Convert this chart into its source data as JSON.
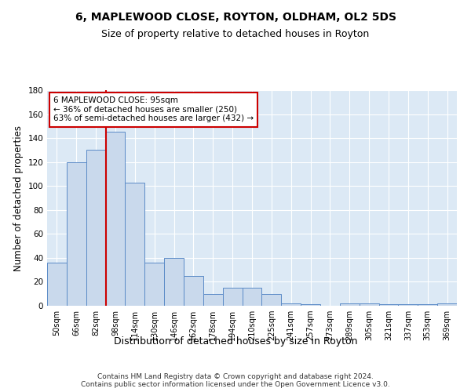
{
  "title": "6, MAPLEWOOD CLOSE, ROYTON, OLDHAM, OL2 5DS",
  "subtitle": "Size of property relative to detached houses in Royton",
  "xlabel": "Distribution of detached houses by size in Royton",
  "ylabel": "Number of detached properties",
  "categories": [
    "50sqm",
    "66sqm",
    "82sqm",
    "98sqm",
    "114sqm",
    "130sqm",
    "146sqm",
    "162sqm",
    "178sqm",
    "194sqm",
    "210sqm",
    "225sqm",
    "241sqm",
    "257sqm",
    "273sqm",
    "289sqm",
    "305sqm",
    "321sqm",
    "337sqm",
    "353sqm",
    "369sqm"
  ],
  "values": [
    36,
    120,
    130,
    145,
    103,
    36,
    40,
    25,
    10,
    15,
    15,
    10,
    2,
    1,
    0,
    2,
    2,
    1,
    1,
    1,
    2
  ],
  "bar_color": "#c9d9ec",
  "bar_edge_color": "#5b8bc7",
  "vline_x": 3.0,
  "vline_color": "#cc0000",
  "annotation_text": "6 MAPLEWOOD CLOSE: 95sqm\n← 36% of detached houses are smaller (250)\n63% of semi-detached houses are larger (432) →",
  "annotation_box_color": "#ffffff",
  "annotation_box_edge": "#cc0000",
  "annotation_fontsize": 7.5,
  "ylim": [
    0,
    180
  ],
  "yticks": [
    0,
    20,
    40,
    60,
    80,
    100,
    120,
    140,
    160,
    180
  ],
  "plot_bg_color": "#dce9f5",
  "title_fontsize": 10,
  "subtitle_fontsize": 9,
  "xlabel_fontsize": 9,
  "ylabel_fontsize": 8.5,
  "tick_label_fontsize": 7,
  "ytick_label_fontsize": 7.5,
  "footer_line1": "Contains HM Land Registry data © Crown copyright and database right 2024.",
  "footer_line2": "Contains public sector information licensed under the Open Government Licence v3.0.",
  "footer_fontsize": 6.5
}
